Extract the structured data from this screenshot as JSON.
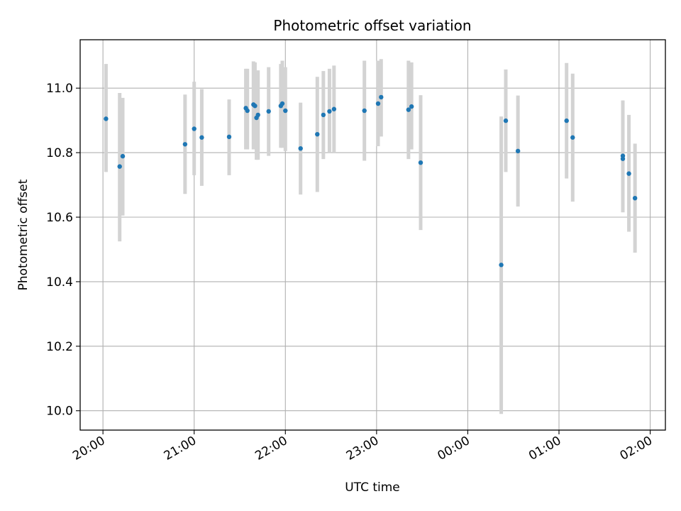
{
  "chart_data": {
    "type": "scatter",
    "title": "Photometric offset variation",
    "xlabel": "UTC time",
    "ylabel": "Photometric offset",
    "xlim": [
      "19:45",
      "02:10"
    ],
    "ylim": [
      9.94,
      11.15
    ],
    "x_ticks": [
      {
        "value": "20:00",
        "label": "20:00"
      },
      {
        "value": "21:00",
        "label": "21:00"
      },
      {
        "value": "22:00",
        "label": "22:00"
      },
      {
        "value": "23:00",
        "label": "23:00"
      },
      {
        "value": "00:00",
        "label": "00:00"
      },
      {
        "value": "01:00",
        "label": "01:00"
      },
      {
        "value": "02:00",
        "label": "02:00"
      }
    ],
    "y_ticks": [
      10.0,
      10.2,
      10.4,
      10.6,
      10.8,
      11.0
    ],
    "grid": true,
    "colors": {
      "points": "#1f77b4",
      "errorbars": "#d3d3d3",
      "grid": "#b0b0b0"
    },
    "points": [
      {
        "x": "20:02",
        "y": 10.905,
        "ylo": 10.74,
        "yhi": 11.075
      },
      {
        "x": "20:11",
        "y": 10.757,
        "ylo": 10.525,
        "yhi": 10.985
      },
      {
        "x": "20:13",
        "y": 10.789,
        "ylo": 10.605,
        "yhi": 10.97
      },
      {
        "x": "20:54",
        "y": 10.826,
        "ylo": 10.672,
        "yhi": 10.98
      },
      {
        "x": "21:00",
        "y": 10.874,
        "ylo": 10.73,
        "yhi": 11.02
      },
      {
        "x": "21:05",
        "y": 10.847,
        "ylo": 10.697,
        "yhi": 10.997
      },
      {
        "x": "21:23",
        "y": 10.849,
        "ylo": 10.73,
        "yhi": 10.965
      },
      {
        "x": "21:34",
        "y": 10.938,
        "ylo": 10.81,
        "yhi": 11.06
      },
      {
        "x": "21:35",
        "y": 10.93,
        "ylo": 10.81,
        "yhi": 11.06
      },
      {
        "x": "21:39",
        "y": 10.949,
        "ylo": 10.81,
        "yhi": 11.083
      },
      {
        "x": "21:40",
        "y": 10.945,
        "ylo": 10.81,
        "yhi": 11.08
      },
      {
        "x": "21:41",
        "y": 10.908,
        "ylo": 10.778,
        "yhi": 11.04
      },
      {
        "x": "21:42",
        "y": 10.917,
        "ylo": 10.778,
        "yhi": 11.055
      },
      {
        "x": "21:49",
        "y": 10.928,
        "ylo": 10.79,
        "yhi": 11.065
      },
      {
        "x": "21:57",
        "y": 10.945,
        "ylo": 10.815,
        "yhi": 11.075
      },
      {
        "x": "21:58",
        "y": 10.952,
        "ylo": 10.815,
        "yhi": 11.085
      },
      {
        "x": "22:00",
        "y": 10.93,
        "ylo": 10.805,
        "yhi": 11.065
      },
      {
        "x": "22:10",
        "y": 10.813,
        "ylo": 10.67,
        "yhi": 10.955
      },
      {
        "x": "22:21",
        "y": 10.857,
        "ylo": 10.678,
        "yhi": 11.035
      },
      {
        "x": "22:25",
        "y": 10.917,
        "ylo": 10.78,
        "yhi": 11.053
      },
      {
        "x": "22:29",
        "y": 10.928,
        "ylo": 10.8,
        "yhi": 11.06
      },
      {
        "x": "22:32",
        "y": 10.935,
        "ylo": 10.8,
        "yhi": 11.07
      },
      {
        "x": "22:52",
        "y": 10.93,
        "ylo": 10.775,
        "yhi": 11.085
      },
      {
        "x": "23:01",
        "y": 10.952,
        "ylo": 10.82,
        "yhi": 11.085
      },
      {
        "x": "23:03",
        "y": 10.972,
        "ylo": 10.85,
        "yhi": 11.09
      },
      {
        "x": "23:21",
        "y": 10.933,
        "ylo": 10.78,
        "yhi": 11.085
      },
      {
        "x": "23:23",
        "y": 10.943,
        "ylo": 10.81,
        "yhi": 11.08
      },
      {
        "x": "23:29",
        "y": 10.769,
        "ylo": 10.56,
        "yhi": 10.978
      },
      {
        "x": "00:22",
        "y": 10.452,
        "ylo": 9.99,
        "yhi": 10.912
      },
      {
        "x": "00:25",
        "y": 10.899,
        "ylo": 10.74,
        "yhi": 11.058
      },
      {
        "x": "00:33",
        "y": 10.805,
        "ylo": 10.633,
        "yhi": 10.977
      },
      {
        "x": "01:05",
        "y": 10.899,
        "ylo": 10.72,
        "yhi": 11.078
      },
      {
        "x": "01:09",
        "y": 10.847,
        "ylo": 10.648,
        "yhi": 11.045
      },
      {
        "x": "01:42",
        "y": 10.79,
        "ylo": 10.615,
        "yhi": 10.962
      },
      {
        "x": "01:42",
        "y": 10.781,
        "ylo": 10.615,
        "yhi": 10.947
      },
      {
        "x": "01:46",
        "y": 10.735,
        "ylo": 10.555,
        "yhi": 10.917
      },
      {
        "x": "01:50",
        "y": 10.659,
        "ylo": 10.49,
        "yhi": 10.828
      }
    ]
  }
}
